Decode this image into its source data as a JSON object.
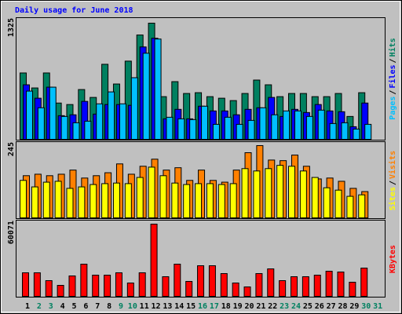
{
  "chart_data": [
    {
      "type": "bar",
      "title": "Daily usage for June 2018",
      "title_color": "#0000ff",
      "ylim": [
        0,
        1325
      ],
      "yticks": [
        1325
      ],
      "separator": "/",
      "series": [
        {
          "name": "Pages",
          "color": "#00c0ff",
          "values": [
            550,
            360,
            595,
            261,
            189,
            207,
            405,
            541,
            405,
            703,
            982,
            1144,
            252,
            234,
            225,
            378,
            171,
            252,
            171,
            216,
            360,
            280,
            324,
            324,
            261,
            333,
            180,
            189,
            117,
            171,
            0
          ]
        },
        {
          "name": "Files",
          "color": "#0000ff",
          "values": [
            622,
            469,
            595,
            270,
            280,
            433,
            288,
            397,
            397,
            388,
            1054,
            1153,
            234,
            342,
            234,
            378,
            324,
            324,
            280,
            342,
            360,
            478,
            261,
            342,
            306,
            397,
            324,
            315,
            144,
            414,
            0
          ]
        },
        {
          "name": "Hits",
          "color": "#008060",
          "values": [
            757,
            586,
            757,
            414,
            397,
            568,
            478,
            856,
            631,
            892,
            1190,
            1325,
            487,
            658,
            523,
            532,
            487,
            469,
            442,
            523,
            676,
            622,
            487,
            523,
            523,
            487,
            487,
            523,
            261,
            532,
            0
          ]
        }
      ]
    },
    {
      "type": "bar",
      "ylim": [
        0,
        245
      ],
      "yticks": [
        245
      ],
      "separator": "/",
      "series": [
        {
          "name": "Sites",
          "color": "#ffff00",
          "values": [
            127,
            105,
            121,
            124,
            100,
            105,
            113,
            116,
            118,
            116,
            137,
            172,
            143,
            118,
            113,
            116,
            116,
            113,
            116,
            167,
            159,
            167,
            178,
            175,
            159,
            137,
            102,
            94,
            73,
            78,
            0
          ]
        },
        {
          "name": "Visits",
          "color": "#ff8000",
          "values": [
            143,
            148,
            143,
            148,
            162,
            135,
            143,
            153,
            183,
            148,
            175,
            199,
            162,
            170,
            127,
            162,
            127,
            121,
            162,
            221,
            245,
            196,
            194,
            213,
            175,
            132,
            135,
            124,
            100,
            89,
            0
          ]
        }
      ]
    },
    {
      "type": "bar",
      "ylim": [
        0,
        60071
      ],
      "yticks": [
        60071
      ],
      "categories": [
        "1",
        "2",
        "3",
        "4",
        "5",
        "6",
        "7",
        "8",
        "9",
        "10",
        "11",
        "12",
        "13",
        "14",
        "15",
        "16",
        "17",
        "18",
        "19",
        "20",
        "21",
        "22",
        "23",
        "24",
        "25",
        "26",
        "27",
        "28",
        "29",
        "30",
        "31"
      ],
      "category_colors": [
        "#000000",
        "#008060",
        "#008060",
        "#000000",
        "#000000",
        "#000000",
        "#000000",
        "#000000",
        "#008060",
        "#008060",
        "#000000",
        "#000000",
        "#000000",
        "#000000",
        "#000000",
        "#008060",
        "#008060",
        "#000000",
        "#000000",
        "#000000",
        "#000000",
        "#000000",
        "#008060",
        "#008060",
        "#000000",
        "#000000",
        "#000000",
        "#000000",
        "#000000",
        "#008060",
        "#008060"
      ],
      "series": [
        {
          "name": "KBytes",
          "color": "#ff0000",
          "values": [
            19600,
            19600,
            13060,
            9140,
            16980,
            26770,
            17630,
            17630,
            19600,
            11100,
            19600,
            60071,
            16330,
            26770,
            12410,
            25470,
            25470,
            18940,
            11100,
            7840,
            18940,
            22850,
            13060,
            16330,
            16330,
            17630,
            20900,
            20240,
            11750,
            23510,
            0
          ]
        }
      ]
    }
  ]
}
